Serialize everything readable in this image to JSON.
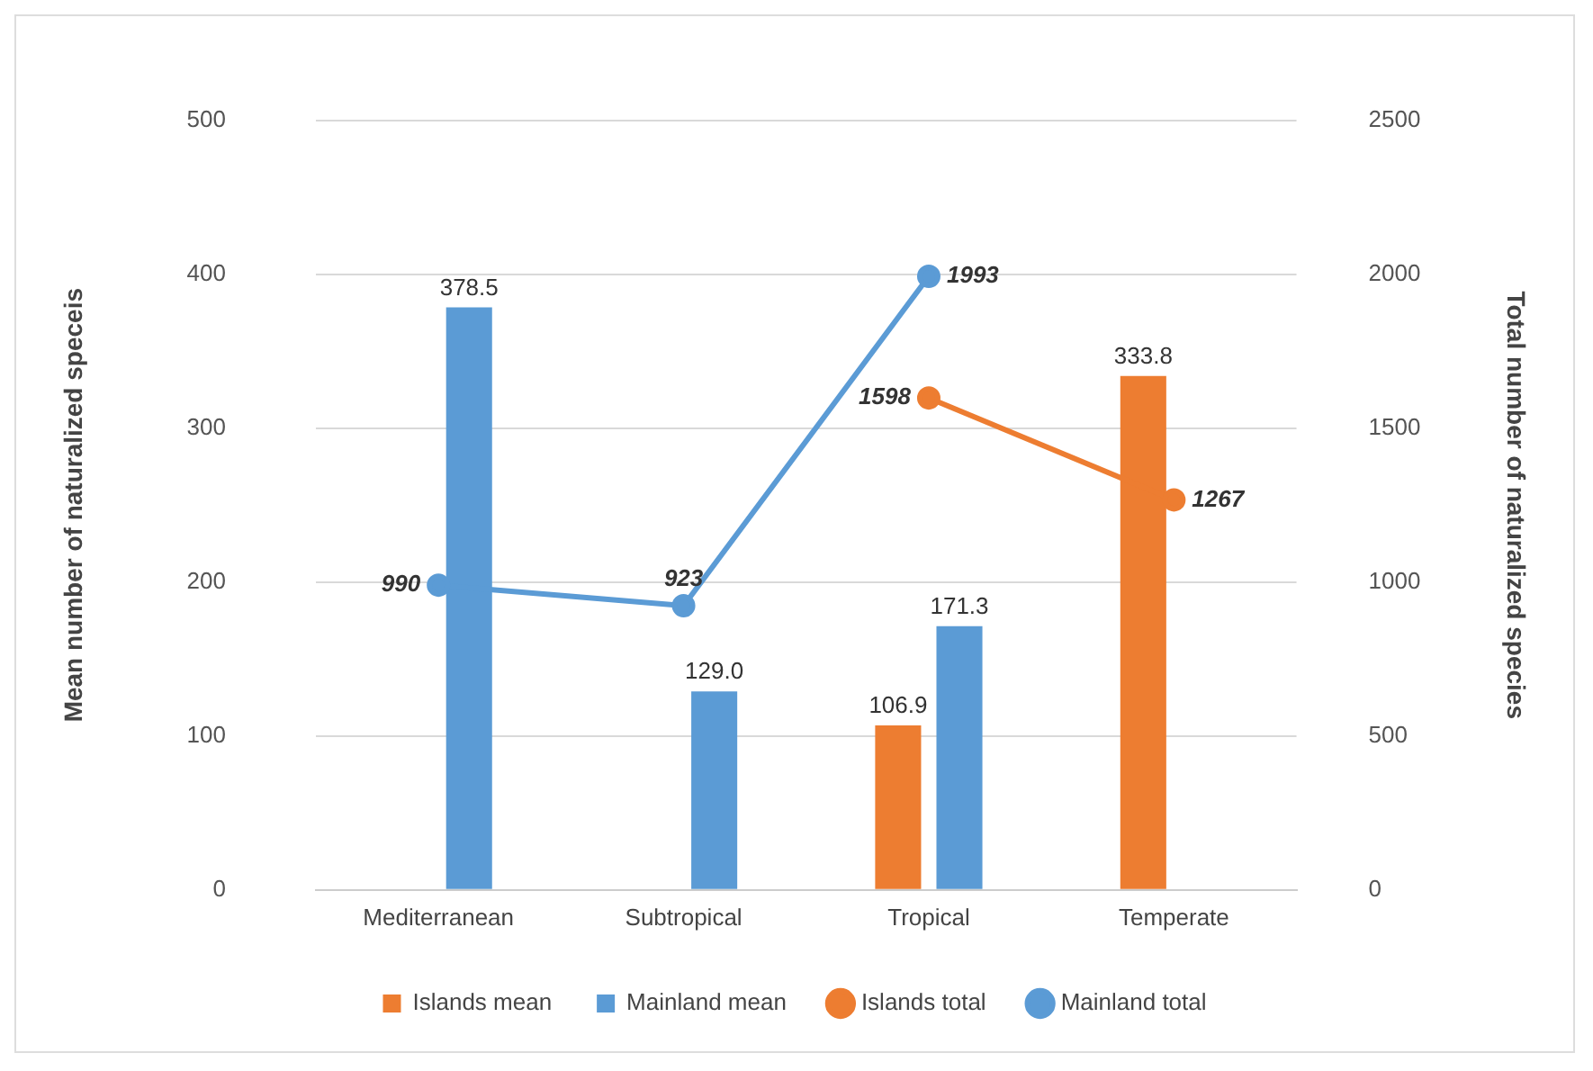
{
  "chart_data": {
    "type": "bar",
    "categories": [
      "Mediterranean",
      "Subtropical",
      "Tropical",
      "Temperate"
    ],
    "ylabel": "Mean number of naturalized speceis",
    "y2label": "Total number of naturalized species",
    "ylim": [
      0,
      500
    ],
    "yticks": [
      0,
      100,
      200,
      300,
      400,
      500
    ],
    "y2lim": [
      0,
      2500
    ],
    "y2ticks": [
      0,
      500,
      1000,
      1500,
      2000,
      2500
    ],
    "grid": "y",
    "legend": "bottom",
    "marker": "circle",
    "series": [
      {
        "name": "Islands mean",
        "color": "#ed7d31",
        "values": [
          null,
          null,
          106.9,
          333.8
        ],
        "value_labels": [
          null,
          null,
          "106.9",
          "333.8"
        ]
      },
      {
        "name": "Mainland mean",
        "color": "#5b9bd5",
        "values": [
          378.5,
          129.0,
          171.3,
          null
        ],
        "value_labels": [
          "378.5",
          "129.0",
          "171.3",
          null
        ]
      },
      {
        "name": "Islands total",
        "type": "line",
        "axis": "y2",
        "color": "#ed7d31",
        "values": [
          null,
          null,
          1598,
          1267
        ],
        "value_labels": [
          null,
          null,
          "1598",
          "1267"
        ]
      },
      {
        "name": "Mainland total",
        "type": "line",
        "axis": "y2",
        "color": "#5b9bd5",
        "values": [
          990,
          923,
          1993,
          null
        ],
        "value_labels": [
          "990",
          "923",
          "1993",
          null
        ]
      }
    ]
  }
}
